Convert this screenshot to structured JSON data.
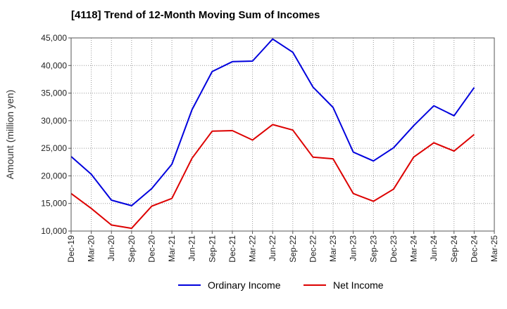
{
  "chart_data": {
    "type": "line",
    "title": "[4118]  Trend of 12-Month Moving Sum of Incomes",
    "xlabel": "",
    "ylabel": "Amount (million yen)",
    "ylim": [
      10000,
      45000
    ],
    "yticks": [
      10000,
      15000,
      20000,
      25000,
      30000,
      35000,
      40000,
      45000
    ],
    "ytick_labels": [
      "10,000",
      "15,000",
      "20,000",
      "25,000",
      "30,000",
      "35,000",
      "40,000",
      "45,000"
    ],
    "categories": [
      "Dec-19",
      "Mar-20",
      "Jun-20",
      "Sep-20",
      "Dec-20",
      "Mar-21",
      "Jun-21",
      "Sep-21",
      "Dec-21",
      "Mar-22",
      "Jun-22",
      "Sep-22",
      "Dec-22",
      "Mar-23",
      "Jun-23",
      "Sep-23",
      "Dec-23",
      "Mar-24",
      "Jun-24",
      "Sep-24",
      "Dec-24",
      "Mar-25"
    ],
    "grid": true,
    "legend_position": "bottom",
    "series": [
      {
        "name": "Ordinary Income",
        "color": "#0000dd",
        "values": [
          23500,
          20300,
          15600,
          14600,
          17700,
          22100,
          32000,
          38900,
          40700,
          40800,
          44800,
          42400,
          36100,
          32400,
          24300,
          22700,
          25100,
          29100,
          32700,
          30900,
          36000,
          null
        ]
      },
      {
        "name": "Net Income",
        "color": "#dd0000",
        "values": [
          16800,
          14100,
          11100,
          10500,
          14500,
          15900,
          23200,
          28100,
          28200,
          26500,
          29300,
          28300,
          23400,
          23100,
          16800,
          15400,
          17600,
          23400,
          26000,
          24500,
          27500,
          null
        ]
      }
    ]
  }
}
